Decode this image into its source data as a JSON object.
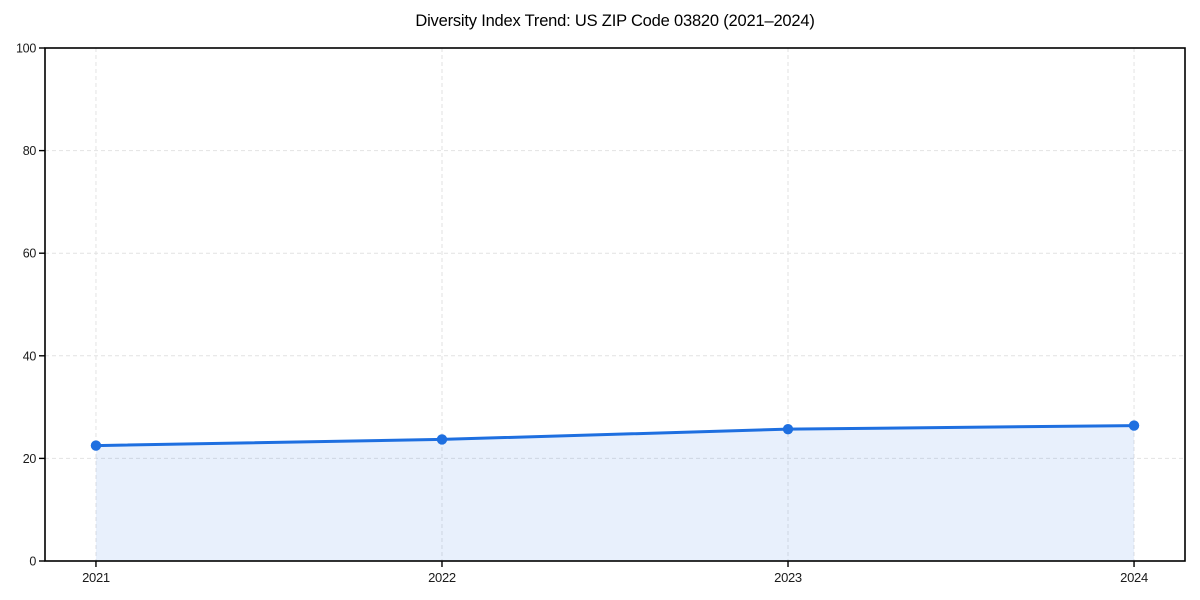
{
  "page": {
    "background_color": "#ffffff"
  },
  "chart_data": {
    "type": "area",
    "title": "Diversity Index Trend: US ZIP Code 03820 (2021–2024)",
    "x": [
      2021,
      2022,
      2023,
      2024
    ],
    "x_tick_labels": [
      "2021",
      "2022",
      "2023",
      "2024"
    ],
    "values": [
      22.5,
      23.7,
      25.7,
      26.4
    ],
    "ylim": [
      0,
      100
    ],
    "y_ticks": [
      0,
      20,
      40,
      60,
      80,
      100
    ],
    "xlabel": "",
    "ylabel": "",
    "legend": "none",
    "grid": "dashed, horizontal at y ticks and vertical at x ticks",
    "marker": "circle",
    "line_color": "#1e6fe0",
    "fill_color": "rgba(30,111,224,0.10)",
    "grid_color": "#e2e2e2",
    "axis_color": "#000000",
    "text_color": "#1a1a1a",
    "x_axis_padding_frac": 0.0447
  }
}
